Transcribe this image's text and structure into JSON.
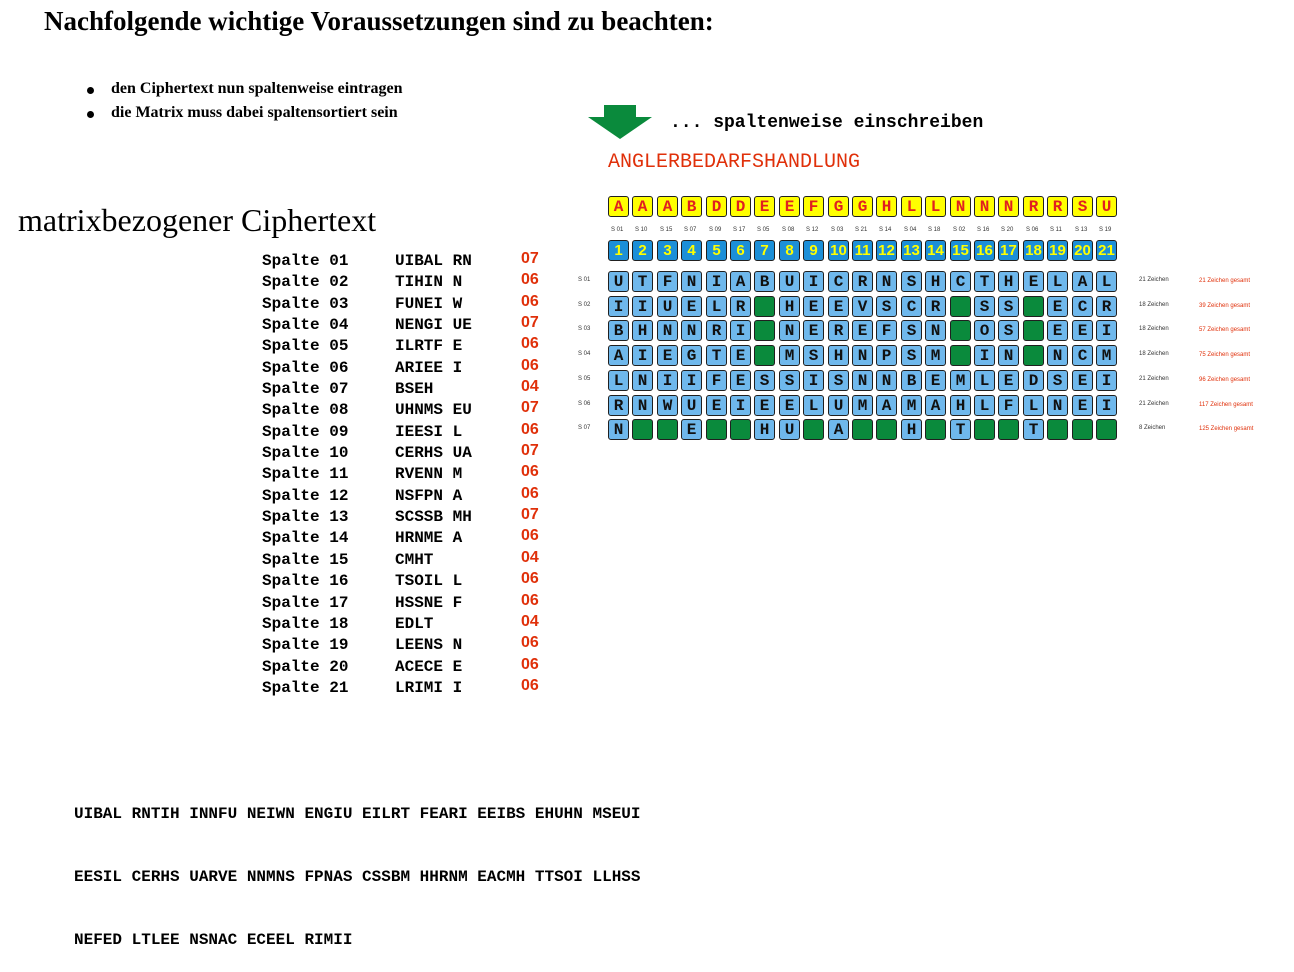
{
  "title": "Nachfolgende wichtige Voraussetzungen sind zu beachten:",
  "bullets": [
    "den Ciphertext nun spaltenweise eintragen",
    "die Matrix muss dabei spaltensortiert sein"
  ],
  "heading2": "matrixbezogener Ciphertext",
  "write_note": "... spaltenweise einschreiben",
  "keyword": "ANGLERBEDARFSHANDLUNG",
  "colors": {
    "key_bg": "#ffff00",
    "key_fg": "#e02020",
    "num_bg": "#1c8fd8",
    "num_fg": "#ffff00",
    "cell_bg": "#6fb8ec",
    "empty_bg": "#0a8a3c",
    "accent": "#e0300a"
  },
  "sorted_key": [
    "A",
    "A",
    "A",
    "B",
    "D",
    "D",
    "E",
    "E",
    "F",
    "G",
    "G",
    "H",
    "L",
    "L",
    "N",
    "N",
    "N",
    "R",
    "R",
    "S",
    "U"
  ],
  "column_numbers": [
    "1",
    "2",
    "3",
    "4",
    "5",
    "6",
    "7",
    "8",
    "9",
    "10",
    "11",
    "12",
    "13",
    "14",
    "15",
    "16",
    "17",
    "18",
    "19",
    "20",
    "21"
  ],
  "column_refs": [
    "S 01",
    "S 10",
    "S 15",
    "S 07",
    "S 09",
    "S 17",
    "S 05",
    "S 08",
    "S 12",
    "S 03",
    "S 21",
    "S 14",
    "S 04",
    "S 18",
    "S 02",
    "S 16",
    "S 20",
    "S 06",
    "S 11",
    "S 13",
    "S 19"
  ],
  "matrix_rows": [
    {
      "ref": "S 01",
      "cells": "UTFNIABUICRNSHCTHELAL",
      "count": "21 Zeichen",
      "total": "21 Zeichen gesamt"
    },
    {
      "ref": "S 02",
      "cells": "IIUELR HEEVSCR SS ECR",
      "count": "18 Zeichen",
      "total": "39 Zeichen gesamt"
    },
    {
      "ref": "S 03",
      "cells": "BHNNRI NEREFSN OS EEI",
      "count": "18 Zeichen",
      "total": "57 Zeichen gesamt"
    },
    {
      "ref": "S 04",
      "cells": "AIEGTE MSHNPSM IN NCM",
      "count": "18 Zeichen",
      "total": "75 Zeichen gesamt"
    },
    {
      "ref": "S 05",
      "cells": "LNIIFESSISNNBEMLEDSEI",
      "count": "21 Zeichen",
      "total": "96 Zeichen gesamt"
    },
    {
      "ref": "S 06",
      "cells": "RNWUEIEELUMAMAHLFLNEI",
      "count": "21 Zeichen",
      "total": "117 Zeichen gesamt"
    },
    {
      "ref": "S 07",
      "cells": "N  E  HU A  H T  T   ",
      "count": "8 Zeichen",
      "total": "125 Zeichen gesamt"
    }
  ],
  "columns_list": [
    {
      "label": "Spalte 01",
      "text": "UIBAL RN",
      "count": "07"
    },
    {
      "label": "Spalte 02",
      "text": "TIHIN N",
      "count": "06"
    },
    {
      "label": "Spalte 03",
      "text": "FUNEI W",
      "count": "06"
    },
    {
      "label": "Spalte 04",
      "text": "NENGI UE",
      "count": "07"
    },
    {
      "label": "Spalte 05",
      "text": "ILRTF E",
      "count": "06"
    },
    {
      "label": "Spalte 06",
      "text": "ARIEE I",
      "count": "06"
    },
    {
      "label": "Spalte 07",
      "text": "BSEH",
      "count": "04"
    },
    {
      "label": "Spalte 08",
      "text": "UHNMS EU",
      "count": "07"
    },
    {
      "label": "Spalte 09",
      "text": "IEESI L",
      "count": "06"
    },
    {
      "label": "Spalte 10",
      "text": "CERHS UA",
      "count": "07"
    },
    {
      "label": "Spalte 11",
      "text": "RVENN M",
      "count": "06"
    },
    {
      "label": "Spalte 12",
      "text": "NSFPN A",
      "count": "06"
    },
    {
      "label": "Spalte 13",
      "text": "SCSSB MH",
      "count": "07"
    },
    {
      "label": "Spalte 14",
      "text": "HRNME A",
      "count": "06"
    },
    {
      "label": "Spalte 15",
      "text": "CMHT",
      "count": "04"
    },
    {
      "label": "Spalte 16",
      "text": "TSOIL L",
      "count": "06"
    },
    {
      "label": "Spalte 17",
      "text": "HSSNE F",
      "count": "06"
    },
    {
      "label": "Spalte 18",
      "text": "EDLT",
      "count": "04"
    },
    {
      "label": "Spalte 19",
      "text": "LEENS N",
      "count": "06"
    },
    {
      "label": "Spalte 20",
      "text": "ACECE E",
      "count": "06"
    },
    {
      "label": "Spalte 21",
      "text": "LRIMI I",
      "count": "06"
    }
  ],
  "ciphertext_lines": [
    "UIBAL RNTIH INNFU NEIWN ENGIU EILRT FEARI EEIBS EHUHN MSEUI",
    "EESIL CERHS UARVE NNMNS FPNAS CSSBM HHRNM EACMH TTSOI LLHSS",
    "NEFED LTLEE NSNAC ECEEL RIMII"
  ]
}
